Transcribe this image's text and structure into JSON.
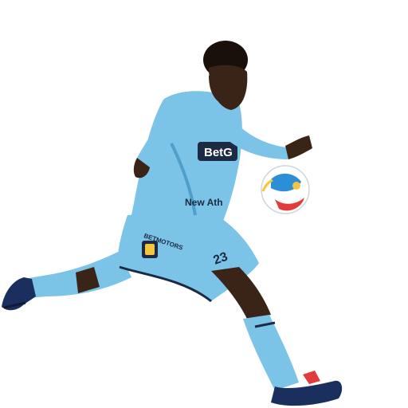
{
  "image": {
    "background_color": "#ffffff",
    "subject": "soccer-player-kicking-ball",
    "kit_color": "#7cc3e8",
    "kit_shadow_color": "#4f9fcb",
    "trim_color": "#1c2a44",
    "skin_color": "#3a2418",
    "boot_color": "#1b2f5e",
    "ball_colors": [
      "#ffffff",
      "#2a8fd6",
      "#e23b3b",
      "#f2c640"
    ]
  },
  "jersey": {
    "sponsor_main": "BetG",
    "sponsor_secondary": "New Ath",
    "shorts_text": "BETMOTORS",
    "number": "23"
  }
}
